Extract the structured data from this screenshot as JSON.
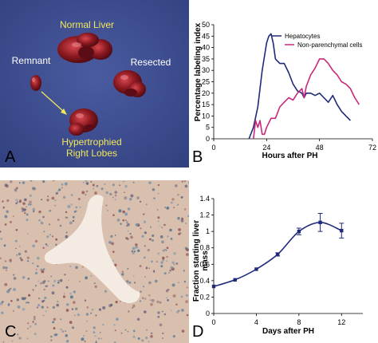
{
  "panels": {
    "a": {
      "letter": "A",
      "normal_liver": "Normal Liver",
      "remnant": "Remnant",
      "resected": "Resected",
      "hypertrophied_line1": "Hypertrophied",
      "hypertrophied_line2": "Right Lobes",
      "background_color": "#3e4f93",
      "label_color": "#f2e85a"
    },
    "b": {
      "letter": "B"
    },
    "c": {
      "letter": "C"
    },
    "d": {
      "letter": "D"
    }
  },
  "chart_data": [
    {
      "type": "line",
      "panel": "B",
      "title": "",
      "xlabel": "Hours after PH",
      "ylabel": "Percentage labeling index",
      "xlim": [
        0,
        72
      ],
      "ylim": [
        0,
        50
      ],
      "xticks": [
        0,
        24,
        48,
        72
      ],
      "yticks": [
        0,
        5,
        10,
        15,
        20,
        25,
        30,
        35,
        40,
        45,
        50
      ],
      "legend_position": "top-right",
      "series": [
        {
          "name": "Hepatocytes",
          "color": "#1f2a7a",
          "points": [
            [
              16,
              0
            ],
            [
              18,
              5
            ],
            [
              20,
              14
            ],
            [
              22,
              30
            ],
            [
              24,
              42
            ],
            [
              25,
              45
            ],
            [
              26,
              46
            ],
            [
              27,
              42
            ],
            [
              28,
              35
            ],
            [
              30,
              33
            ],
            [
              32,
              33
            ],
            [
              34,
              29
            ],
            [
              36,
              24
            ],
            [
              38,
              21
            ],
            [
              40,
              20
            ],
            [
              41,
              18
            ],
            [
              42,
              20
            ],
            [
              44,
              20
            ],
            [
              46,
              19
            ],
            [
              48,
              20
            ],
            [
              50,
              18
            ],
            [
              52,
              16
            ],
            [
              54,
              19
            ],
            [
              56,
              15
            ],
            [
              58,
              12
            ],
            [
              60,
              10
            ],
            [
              62,
              8
            ]
          ]
        },
        {
          "name": "Non-parenchymal cells",
          "color": "#c8287a",
          "points": [
            [
              18,
              0
            ],
            [
              19,
              8
            ],
            [
              20,
              5
            ],
            [
              21,
              8
            ],
            [
              22,
              2
            ],
            [
              23,
              2
            ],
            [
              24,
              5
            ],
            [
              26,
              9
            ],
            [
              28,
              9
            ],
            [
              30,
              14
            ],
            [
              32,
              16
            ],
            [
              34,
              18
            ],
            [
              36,
              17
            ],
            [
              38,
              20
            ],
            [
              40,
              22
            ],
            [
              41,
              18
            ],
            [
              42,
              23
            ],
            [
              44,
              28
            ],
            [
              46,
              31
            ],
            [
              48,
              35
            ],
            [
              50,
              35
            ],
            [
              52,
              33
            ],
            [
              54,
              30
            ],
            [
              56,
              28
            ],
            [
              58,
              25
            ],
            [
              60,
              24
            ],
            [
              62,
              22
            ],
            [
              64,
              18
            ],
            [
              66,
              15
            ]
          ]
        }
      ]
    },
    {
      "type": "line",
      "panel": "D",
      "title": "",
      "xlabel": "Days after PH",
      "ylabel_line1": "Fraction starting liver",
      "ylabel_line2": "mass",
      "xlim": [
        0,
        14
      ],
      "ylim": [
        0,
        1.4
      ],
      "xticks": [
        0,
        4,
        8,
        12
      ],
      "yticks": [
        "0",
        "0.2",
        "0.4",
        "0.6",
        "0.8",
        "1",
        "1.2",
        "1.4"
      ],
      "color": "#1f2a7a",
      "series": [
        {
          "name": "",
          "x": [
            0,
            2,
            4,
            6,
            8,
            10,
            12
          ],
          "y": [
            0.33,
            0.41,
            0.54,
            0.72,
            1.0,
            1.11,
            1.01
          ],
          "error": [
            0.01,
            0.01,
            0.01,
            0.02,
            0.04,
            0.11,
            0.09
          ]
        }
      ]
    }
  ]
}
